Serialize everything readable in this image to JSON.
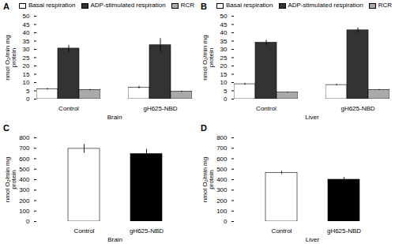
{
  "chart_data": [
    {
      "type": "bar",
      "title": "A",
      "xlabel": "Brain",
      "ylabel": "nmol O₂/min mg\nprotein",
      "categories": [
        "Control",
        "gH625-NBD"
      ],
      "series": [
        {
          "name": "Basal respiration",
          "color": "white",
          "values": [
            6.0,
            7.0
          ],
          "errors": [
            0.5,
            0.8
          ]
        },
        {
          "name": "ADP-stimulated respiration",
          "color": "#333333",
          "values": [
            30.5,
            32.5
          ],
          "errors": [
            2.0,
            4.0
          ]
        },
        {
          "name": "RCR",
          "color": "#aaaaaa",
          "values": [
            5.5,
            4.5
          ],
          "errors": [
            0.4,
            0.4
          ]
        }
      ],
      "ylim": [
        0,
        50
      ],
      "yticks": [
        0,
        5,
        10,
        15,
        20,
        25,
        30,
        35,
        40,
        45,
        50
      ],
      "legend": "upper right"
    },
    {
      "type": "bar",
      "title": "B",
      "xlabel": "Liver",
      "ylabel": "nmol O₂/min mg\nprotein",
      "categories": [
        "Control",
        "gH625-NBD"
      ],
      "series": [
        {
          "name": "Basal respiration",
          "color": "white",
          "values": [
            9.0,
            8.5
          ],
          "errors": [
            0.6,
            0.5
          ]
        },
        {
          "name": "ADP-stimulated respiration",
          "color": "#333333",
          "values": [
            34.0,
            41.5
          ],
          "errors": [
            1.5,
            1.5
          ]
        },
        {
          "name": "RCR",
          "color": "#aaaaaa",
          "values": [
            4.0,
            5.5
          ],
          "errors": [
            0.3,
            0.4
          ]
        }
      ],
      "ylim": [
        0,
        50
      ],
      "yticks": [
        0,
        5,
        10,
        15,
        20,
        25,
        30,
        35,
        40,
        45,
        50
      ],
      "legend": "upper right"
    },
    {
      "type": "bar",
      "title": "C",
      "xlabel": "Brain",
      "ylabel": "nmol O₂/min mg\nprotein",
      "categories": [
        "Control",
        "gH625-NBD"
      ],
      "values": [
        695,
        645
      ],
      "errors": [
        40,
        45
      ],
      "colors": [
        "white",
        "black"
      ],
      "ylim": [
        0,
        800
      ],
      "yticks": [
        0,
        100,
        200,
        300,
        400,
        500,
        600,
        700,
        800
      ]
    },
    {
      "type": "bar",
      "title": "D",
      "xlabel": "Liver",
      "ylabel": "nmol O₂/min mg\nprotein",
      "categories": [
        "Control",
        "gH625-NBD"
      ],
      "values": [
        465,
        400
      ],
      "errors": [
        15,
        20
      ],
      "colors": [
        "white",
        "black"
      ],
      "ylim": [
        0,
        800
      ],
      "yticks": [
        0,
        100,
        200,
        300,
        400,
        500,
        600,
        700,
        800
      ]
    }
  ]
}
